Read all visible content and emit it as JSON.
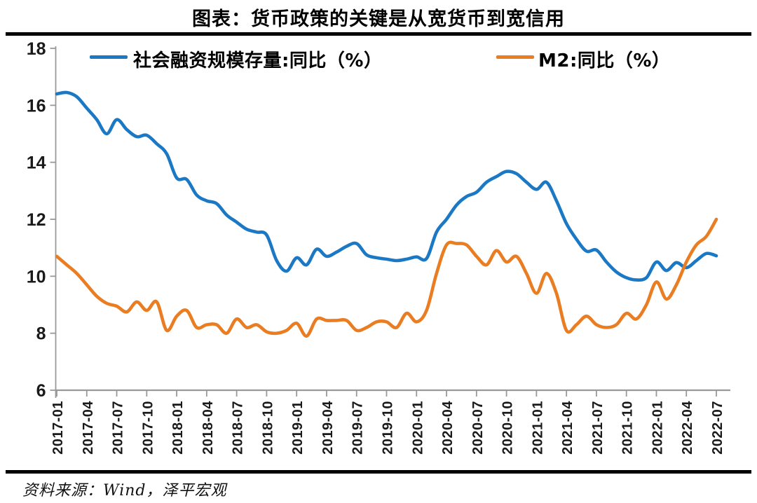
{
  "title": "图表：货币政策的关键是从宽货币到宽信用",
  "source": "资料来源：Wind，泽平宏观",
  "colors": {
    "sfs_blue": "#1B78C4",
    "m2_orange": "#EA7D21",
    "axis": "#999999",
    "tick_label": "#1a1a1a",
    "rule_black": "#000000"
  },
  "chart_data": {
    "type": "line",
    "title": "图表：货币政策的关键是从宽货币到宽信用",
    "x_unit": "month",
    "x_range": [
      "2017-01",
      "2022-07"
    ],
    "x_tick_labels": [
      "2017-01",
      "2017-04",
      "2017-07",
      "2017-10",
      "2018-01",
      "2018-04",
      "2018-07",
      "2018-10",
      "2019-01",
      "2019-04",
      "2019-07",
      "2019-10",
      "2020-01",
      "2020-04",
      "2020-07",
      "2020-10",
      "2021-01",
      "2021-04",
      "2021-07",
      "2021-10",
      "2022-01",
      "2022-04",
      "2022-07"
    ],
    "x_tick_every_n_months": 3,
    "ylim": [
      6,
      18
    ],
    "yticks": [
      18,
      16,
      14,
      12,
      10,
      8,
      6
    ],
    "grid": false,
    "smoothed_lines": true,
    "legend_position": "top-inside",
    "series": [
      {
        "name": "社会融资规模存量:同比（%）",
        "color": "#1B78C4",
        "values": [
          16.4,
          16.45,
          16.3,
          15.9,
          15.5,
          15.0,
          15.5,
          15.15,
          14.9,
          14.95,
          14.65,
          14.3,
          13.45,
          13.4,
          12.85,
          12.65,
          12.55,
          12.15,
          11.9,
          11.65,
          11.55,
          11.45,
          10.55,
          10.18,
          10.65,
          10.4,
          10.95,
          10.7,
          10.85,
          11.05,
          11.15,
          10.75,
          10.65,
          10.6,
          10.55,
          10.6,
          10.68,
          10.62,
          11.55,
          12.0,
          12.5,
          12.8,
          12.95,
          13.3,
          13.5,
          13.68,
          13.6,
          13.3,
          13.05,
          13.3,
          12.65,
          11.85,
          11.3,
          10.88,
          10.92,
          10.5,
          10.15,
          9.95,
          9.87,
          9.95,
          10.5,
          10.2,
          10.48,
          10.3,
          10.55,
          10.8,
          10.72
        ]
      },
      {
        "name": "M2:同比（%）",
        "color": "#EA7D21",
        "values": [
          10.7,
          10.4,
          10.1,
          9.7,
          9.3,
          9.05,
          8.95,
          8.75,
          9.1,
          8.8,
          9.1,
          8.1,
          8.6,
          8.8,
          8.2,
          8.3,
          8.3,
          8.0,
          8.5,
          8.2,
          8.3,
          8.05,
          8.0,
          8.1,
          8.35,
          7.9,
          8.5,
          8.45,
          8.45,
          8.45,
          8.1,
          8.2,
          8.4,
          8.4,
          8.2,
          8.7,
          8.4,
          8.8,
          10.1,
          11.1,
          11.15,
          11.1,
          10.7,
          10.4,
          10.9,
          10.5,
          10.7,
          10.1,
          9.4,
          10.1,
          9.4,
          8.1,
          8.3,
          8.6,
          8.3,
          8.2,
          8.3,
          8.7,
          8.5,
          9.0,
          9.8,
          9.2,
          9.7,
          10.5,
          11.1,
          11.4,
          12.0
        ]
      }
    ]
  }
}
